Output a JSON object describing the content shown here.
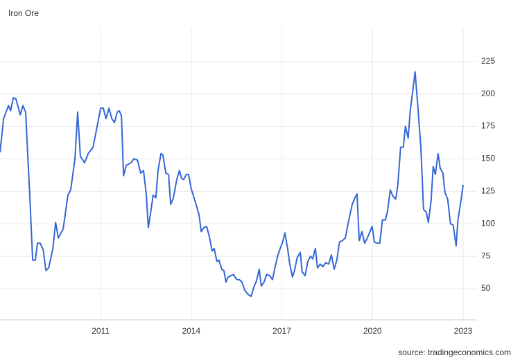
{
  "chart_data": {
    "type": "line",
    "title": "Iron Ore",
    "source": "source: tradingeconomics.com",
    "xlim": [
      2007.67,
      2023.46
    ],
    "xticks": [
      2011,
      2014,
      2017,
      2020,
      2023
    ],
    "ylim": [
      26,
      251
    ],
    "yticks": [
      50,
      75,
      100,
      125,
      150,
      175,
      200,
      225
    ],
    "grid": true,
    "x": [
      2007.67,
      2007.79,
      2007.95,
      2008.02,
      2008.11,
      2008.2,
      2008.34,
      2008.43,
      2008.52,
      2008.66,
      2008.75,
      2008.84,
      2008.91,
      2009.0,
      2009.1,
      2009.19,
      2009.28,
      2009.42,
      2009.51,
      2009.6,
      2009.76,
      2009.92,
      2010.01,
      2010.15,
      2010.24,
      2010.33,
      2010.47,
      2010.59,
      2010.75,
      2010.86,
      2011.0,
      2011.09,
      2011.18,
      2011.28,
      2011.37,
      2011.46,
      2011.55,
      2011.62,
      2011.69,
      2011.76,
      2011.85,
      2012.01,
      2012.1,
      2012.22,
      2012.33,
      2012.42,
      2012.51,
      2012.58,
      2012.67,
      2012.74,
      2012.83,
      2012.9,
      2013.0,
      2013.06,
      2013.16,
      2013.25,
      2013.32,
      2013.41,
      2013.52,
      2013.61,
      2013.68,
      2013.75,
      2013.84,
      2013.91,
      2014.0,
      2014.12,
      2014.26,
      2014.33,
      2014.42,
      2014.51,
      2014.6,
      2014.69,
      2014.76,
      2014.85,
      2014.92,
      2015.01,
      2015.08,
      2015.15,
      2015.22,
      2015.4,
      2015.5,
      2015.59,
      2015.68,
      2015.77,
      2015.86,
      2015.98,
      2016.07,
      2016.16,
      2016.25,
      2016.32,
      2016.41,
      2016.5,
      2016.6,
      2016.69,
      2016.78,
      2016.87,
      2016.96,
      2017.03,
      2017.1,
      2017.19,
      2017.26,
      2017.35,
      2017.42,
      2017.51,
      2017.61,
      2017.67,
      2017.77,
      2017.86,
      2017.95,
      2018.02,
      2018.11,
      2018.18,
      2018.27,
      2018.36,
      2018.45,
      2018.55,
      2018.64,
      2018.73,
      2018.82,
      2018.91,
      2019.0,
      2019.1,
      2019.21,
      2019.33,
      2019.42,
      2019.49,
      2019.56,
      2019.65,
      2019.74,
      2019.83,
      2019.9,
      2019.99,
      2020.06,
      2020.15,
      2020.24,
      2020.33,
      2020.43,
      2020.5,
      2020.59,
      2020.68,
      2020.77,
      2020.84,
      2020.93,
      2021.02,
      2021.09,
      2021.18,
      2021.25,
      2021.32,
      2021.41,
      2021.5,
      2021.6,
      2021.69,
      2021.78,
      2021.85,
      2021.94,
      2022.01,
      2022.08,
      2022.17,
      2022.24,
      2022.33,
      2022.4,
      2022.49,
      2022.58,
      2022.67,
      2022.77,
      2022.83,
      2022.93,
      2023.0
    ],
    "series": [
      {
        "name": "Iron Ore",
        "color": "#3366d6",
        "values": [
          155,
          181,
          191,
          187,
          197,
          196,
          184,
          191,
          186,
          120,
          72,
          72,
          85,
          85,
          80,
          64,
          66,
          81,
          101,
          89,
          96,
          122,
          126,
          150,
          186,
          152,
          147,
          154,
          159,
          172,
          189,
          189,
          181,
          189,
          181,
          178,
          186,
          187,
          183,
          137,
          145,
          147,
          150,
          149,
          139,
          141,
          123,
          97,
          111,
          122,
          120,
          141,
          154,
          153,
          139,
          138,
          115,
          120,
          134,
          141,
          135,
          134,
          138,
          138,
          127,
          118,
          107,
          94,
          97,
          98,
          90,
          79,
          81,
          71,
          72,
          65,
          64,
          55,
          59,
          61,
          57,
          57,
          55,
          49,
          46,
          44,
          51,
          56,
          65,
          52,
          55,
          61,
          60,
          57,
          67,
          76,
          82,
          86,
          93,
          81,
          69,
          59,
          64,
          74,
          78,
          63,
          60,
          71,
          75,
          73,
          81,
          66,
          69,
          67,
          70,
          69,
          76,
          65,
          72,
          86,
          87,
          89,
          102,
          115,
          120,
          123,
          87,
          94,
          85,
          89,
          93,
          98,
          86,
          85,
          85,
          103,
          103,
          110,
          126,
          121,
          119,
          130,
          159,
          159,
          175,
          166,
          187,
          200,
          217,
          191,
          159,
          111,
          109,
          101,
          118,
          144,
          138,
          154,
          143,
          139,
          124,
          119,
          100,
          99,
          83,
          103,
          118,
          130
        ]
      }
    ]
  }
}
